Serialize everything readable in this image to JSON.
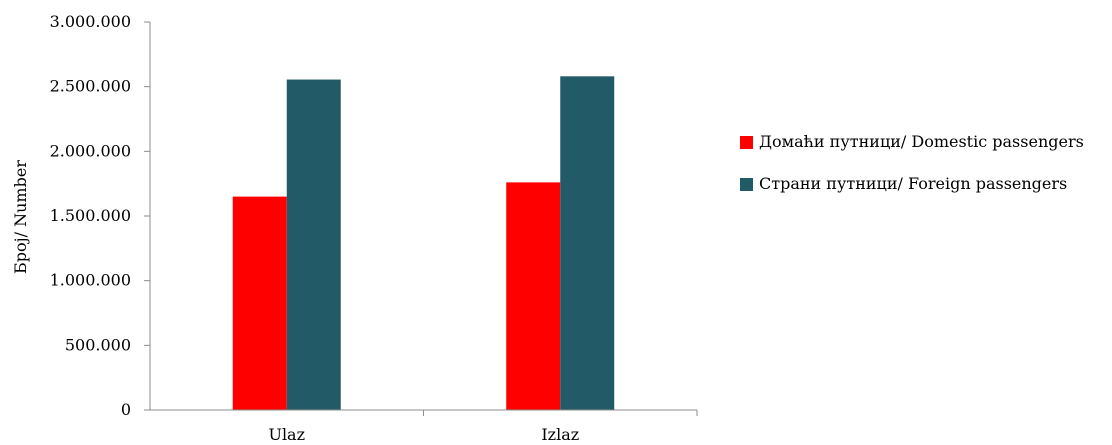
{
  "chart_data": {
    "type": "bar",
    "ylabel": "Број/ Number",
    "xlabel": "",
    "categories": [
      "Ulaz",
      "Izlaz"
    ],
    "ylim": [
      0,
      3000000
    ],
    "yticks": [
      0,
      500000,
      1000000,
      1500000,
      2000000,
      2500000,
      3000000
    ],
    "ytick_labels": [
      "0",
      "500.000",
      "1.000.000",
      "1.500.000",
      "2.000.000",
      "2.500.000",
      "3.000.000"
    ],
    "grid": false,
    "legend_position": "right",
    "series": [
      {
        "name": "Домаћи путници/  Domestic passengers",
        "values": [
          1650000,
          1760000
        ],
        "color": "#ff0000"
      },
      {
        "name": "Страни путници/ Foreign passengers",
        "values": [
          2555000,
          2580000
        ],
        "color": "#235a68"
      }
    ]
  }
}
